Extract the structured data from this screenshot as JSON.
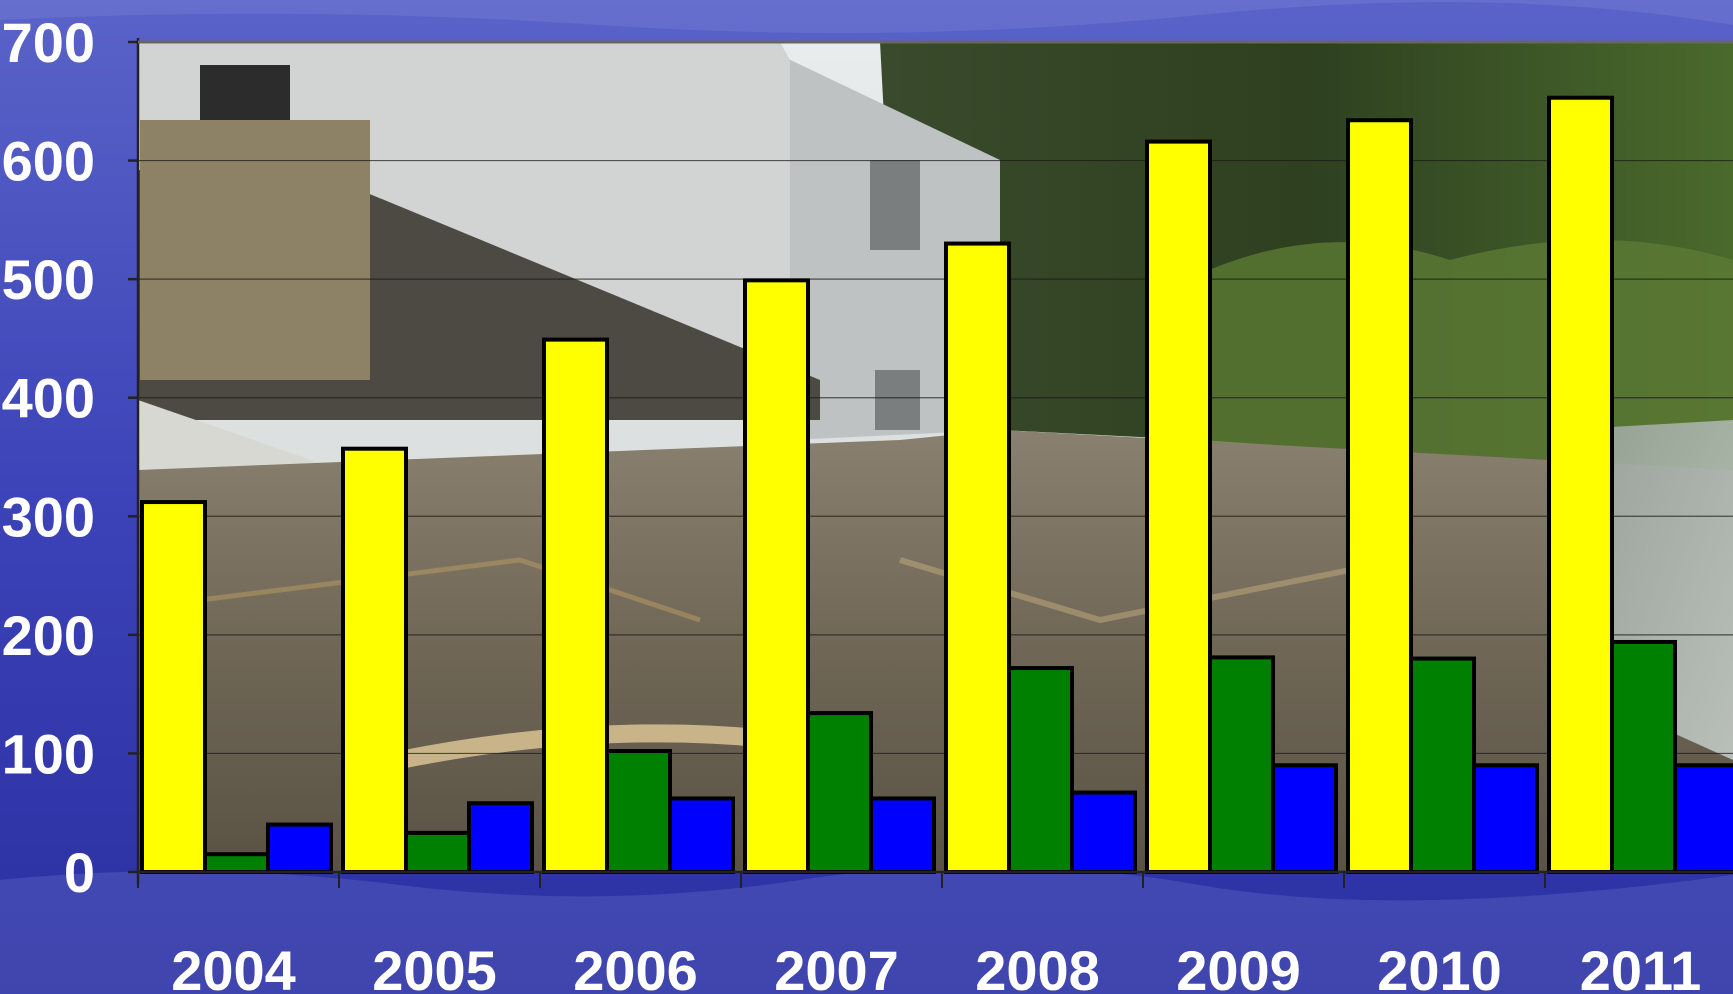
{
  "chart_data": {
    "type": "bar",
    "title": "",
    "xlabel": "",
    "ylabel": "",
    "categories": [
      "2004",
      "2005",
      "2006",
      "2007",
      "2008",
      "2009",
      "2010",
      "2011"
    ],
    "ylim": [
      0,
      700
    ],
    "yticks": [
      "0",
      "100",
      "200",
      "300",
      "400",
      "500",
      "600",
      "700"
    ],
    "grid": true,
    "series": [
      {
        "values": [
          312,
          357,
          449,
          499,
          530,
          616,
          634,
          653
        ],
        "color": "#ffff00"
      },
      {
        "values": [
          15,
          33,
          102,
          134,
          172,
          181,
          180,
          194
        ],
        "color": "#008000"
      },
      {
        "values": [
          40,
          58,
          62,
          62,
          67,
          90,
          90,
          90
        ],
        "color": "#0000ff"
      }
    ]
  },
  "background": {
    "frame_color": "#3a3fb4",
    "photo_description_icon": "flood-damaged-house-photo"
  }
}
